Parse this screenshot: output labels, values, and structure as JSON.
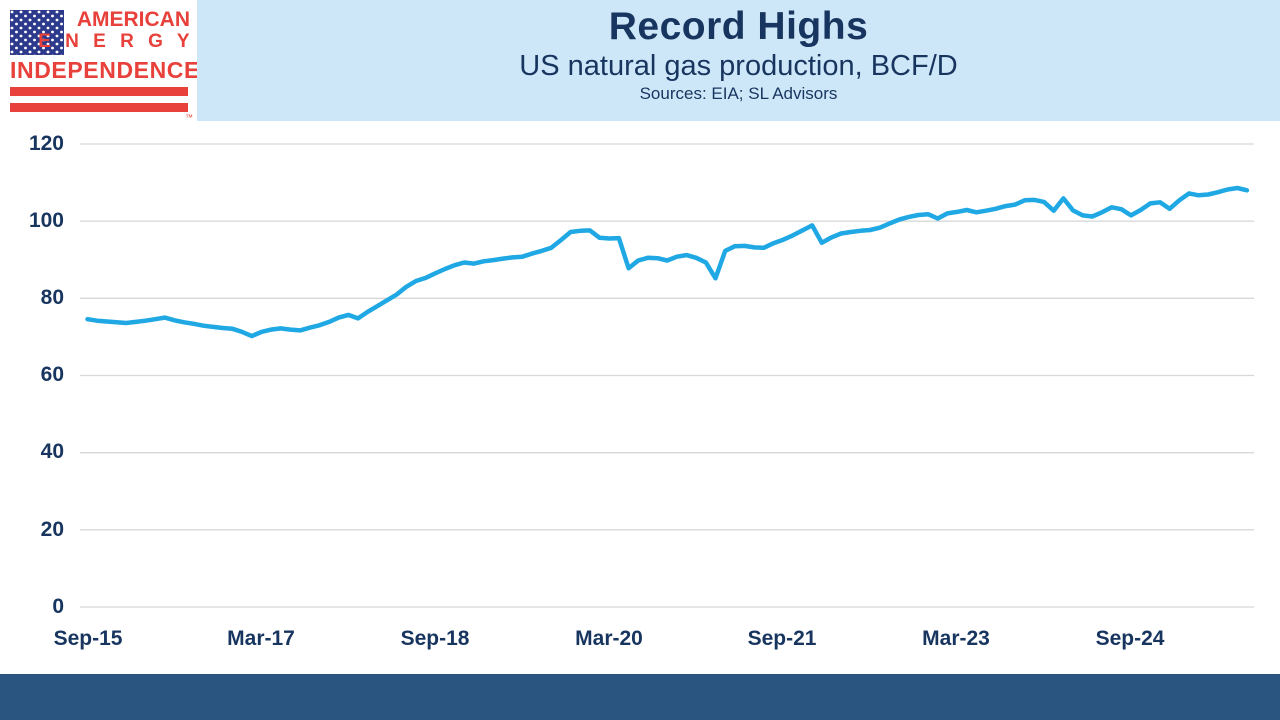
{
  "header": {
    "title": "Record Highs",
    "subtitle": "US natural gas production, BCF/D",
    "sources": "Sources: EIA; SL Advisors"
  },
  "logo": {
    "line1": "AMERICAN",
    "line2": "E N E R G Y",
    "line3": "INDEPENDENCE",
    "trademark": "™"
  },
  "colors": {
    "header_bg": "#cde7f8",
    "navy_text": "#17355f",
    "footer_bar": "#2b5581",
    "gridline": "#d8d8d8",
    "line": "#1fa8e3",
    "logo_red": "#e8403a",
    "logo_blue": "#2d3a8c"
  },
  "chart_data": {
    "type": "line",
    "title": "Record Highs",
    "subtitle": "US natural gas production, BCF/D",
    "sources": "Sources: EIA; SL Advisors",
    "frequency": "monthly",
    "x_start": "Sep-2015",
    "x_end": "Sep-2025",
    "x_tick_labels": [
      "Sep-15",
      "Mar-17",
      "Sep-18",
      "Mar-20",
      "Sep-21",
      "Mar-23",
      "Sep-24"
    ],
    "x_tick_month_index": [
      0,
      18,
      36,
      54,
      72,
      90,
      108
    ],
    "y_ticks": [
      0,
      20,
      40,
      60,
      80,
      100,
      120
    ],
    "ylim": [
      0,
      120
    ],
    "grid": "horizontal",
    "legend": "none",
    "series": [
      {
        "name": "US natural gas production (BCF/D)",
        "color": "#1fa8e3",
        "values": [
          74.6,
          74.2,
          74.0,
          73.8,
          73.6,
          73.9,
          74.2,
          74.6,
          75.0,
          74.3,
          73.8,
          73.4,
          72.9,
          72.6,
          72.3,
          72.1,
          71.3,
          70.2,
          71.3,
          71.9,
          72.2,
          71.9,
          71.7,
          72.4,
          73.0,
          73.9,
          75.0,
          75.7,
          74.8,
          76.5,
          78.0,
          79.5,
          81.0,
          83.0,
          84.5,
          85.3,
          86.5,
          87.6,
          88.6,
          89.3,
          89.0,
          89.6,
          89.9,
          90.3,
          90.6,
          90.8,
          91.6,
          92.3,
          93.1,
          95.1,
          97.2,
          97.5,
          97.6,
          95.7,
          95.5,
          95.6,
          87.8,
          89.8,
          90.5,
          90.4,
          89.8,
          90.8,
          91.2,
          90.5,
          89.3,
          85.2,
          92.3,
          93.5,
          93.6,
          93.2,
          93.1,
          94.3,
          95.2,
          96.3,
          97.6,
          98.9,
          94.4,
          95.8,
          96.8,
          97.2,
          97.5,
          97.7,
          98.3,
          99.4,
          100.4,
          101.1,
          101.6,
          101.8,
          100.7,
          102.0,
          102.4,
          102.9,
          102.3,
          102.7,
          103.2,
          103.9,
          104.3,
          105.4,
          105.5,
          105.0,
          102.7,
          105.9,
          102.8,
          101.5,
          101.2,
          102.3,
          103.6,
          103.1,
          101.5,
          102.9,
          104.6,
          104.9,
          103.2,
          105.4,
          107.2,
          106.7,
          106.9,
          107.5,
          108.2,
          108.6,
          108.0
        ]
      }
    ]
  }
}
